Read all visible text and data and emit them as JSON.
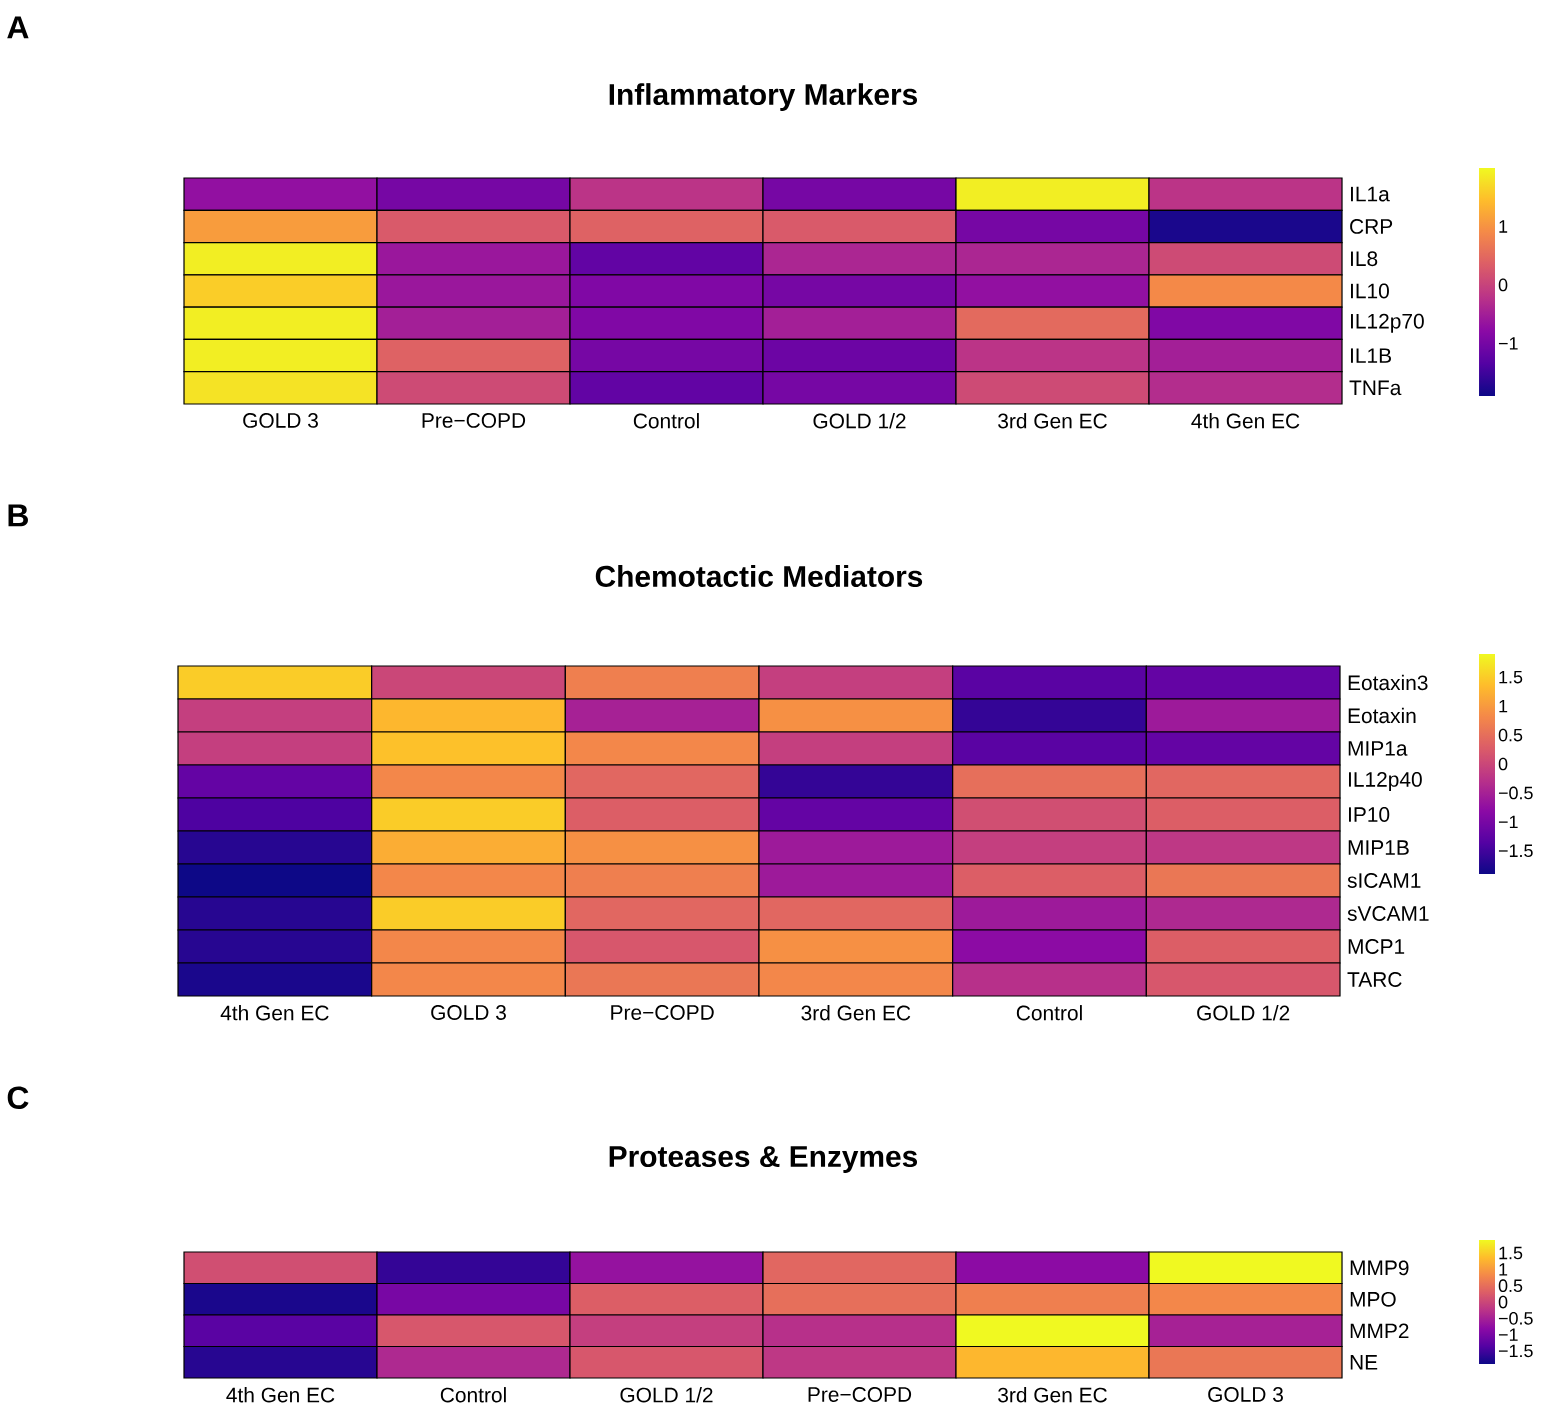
{
  "chart_data": [
    {
      "type": "heatmap",
      "title": "Inflammatory Markers",
      "annotations": [
        "A"
      ],
      "categories": [
        "GOLD 3",
        "Pre−COPD",
        "Control",
        "GOLD 1/2",
        "3rd Gen EC",
        "4th Gen EC"
      ],
      "y_categories": [
        "IL1a",
        "CRP",
        "IL8",
        "IL10",
        "IL12p70",
        "IL1B",
        "TNFa"
      ],
      "cells": [
        [
          -0.7,
          -1.0,
          -0.2,
          -1.0,
          1.9,
          -0.2
        ],
        [
          1.1,
          0.3,
          0.4,
          0.3,
          -1.0,
          -1.8
        ],
        [
          1.9,
          -0.6,
          -1.2,
          -0.4,
          -0.4,
          0.1
        ],
        [
          1.6,
          -0.6,
          -0.9,
          -1.0,
          -0.7,
          0.9
        ],
        [
          1.9,
          -0.5,
          -0.9,
          -0.5,
          0.5,
          -0.9
        ],
        [
          1.9,
          0.4,
          -1.0,
          -1.1,
          -0.2,
          -0.5
        ],
        [
          1.8,
          0.1,
          -1.2,
          -1.0,
          0.1,
          -0.3
        ]
      ],
      "clim": [
        -1.9,
        2.0
      ],
      "cticks": [
        1,
        0,
        {
          "value": -1,
          "label": "−1"
        }
      ]
    },
    {
      "type": "heatmap",
      "title": "Chemotactic Mediators",
      "annotations": [
        "B"
      ],
      "categories": [
        "4th Gen EC",
        "GOLD 3",
        "Pre−COPD",
        "3rd Gen EC",
        "Control",
        "GOLD 1/2"
      ],
      "y_categories": [
        "Eotaxin3",
        "Eotaxin",
        "MIP1a",
        "IL12p40",
        "IP10",
        "MIP1B",
        "sICAM1",
        "sVCAM1",
        "MCP1",
        "TARC"
      ],
      "cells": [
        [
          1.5,
          0.0,
          0.7,
          -0.1,
          -1.3,
          -1.2
        ],
        [
          -0.1,
          1.3,
          -0.5,
          0.9,
          -1.6,
          -0.6
        ],
        [
          -0.1,
          1.4,
          0.8,
          -0.1,
          -1.3,
          -1.2
        ],
        [
          -1.2,
          0.8,
          0.4,
          -1.6,
          0.5,
          0.4
        ],
        [
          -1.4,
          1.5,
          0.3,
          -1.2,
          0.1,
          0.3
        ],
        [
          -1.7,
          1.2,
          0.9,
          -0.6,
          -0.1,
          -0.2
        ],
        [
          -1.9,
          0.8,
          0.7,
          -0.6,
          0.3,
          0.6
        ],
        [
          -1.7,
          1.5,
          0.4,
          0.4,
          -0.6,
          -0.4
        ],
        [
          -1.7,
          0.8,
          0.2,
          0.9,
          -0.8,
          0.3
        ],
        [
          -1.8,
          0.8,
          0.6,
          0.8,
          -0.3,
          0.2
        ]
      ],
      "clim": [
        -1.9,
        1.9
      ],
      "cticks": [
        1.5,
        1,
        0.5,
        0,
        {
          "value": -0.5,
          "label": "−0.5"
        },
        {
          "value": -1,
          "label": "−1"
        },
        {
          "value": -1.5,
          "label": "−1.5"
        }
      ]
    },
    {
      "type": "heatmap",
      "title": "Proteases & Enzymes",
      "annotations": [
        "C"
      ],
      "categories": [
        "4th Gen EC",
        "Control",
        "GOLD 1/2",
        "Pre−COPD",
        "3rd Gen EC",
        "GOLD 3"
      ],
      "y_categories": [
        "MMP9",
        "MPO",
        "MMP2",
        "NE"
      ],
      "cells": [
        [
          0.1,
          -1.6,
          -0.7,
          0.4,
          -0.8,
          1.9
        ],
        [
          -1.8,
          -1.0,
          0.3,
          0.5,
          0.7,
          0.8
        ],
        [
          -1.3,
          0.2,
          -0.1,
          -0.3,
          1.9,
          -0.5
        ],
        [
          -1.7,
          -0.4,
          0.2,
          -0.2,
          1.3,
          0.6
        ]
      ],
      "clim": [
        -1.9,
        1.9
      ],
      "cticks": [
        1.5,
        1,
        0.5,
        0,
        {
          "value": -0.5,
          "label": "−0.5"
        },
        {
          "value": -1,
          "label": "−1"
        },
        {
          "value": -1.5,
          "label": "−1.5"
        }
      ]
    }
  ]
}
